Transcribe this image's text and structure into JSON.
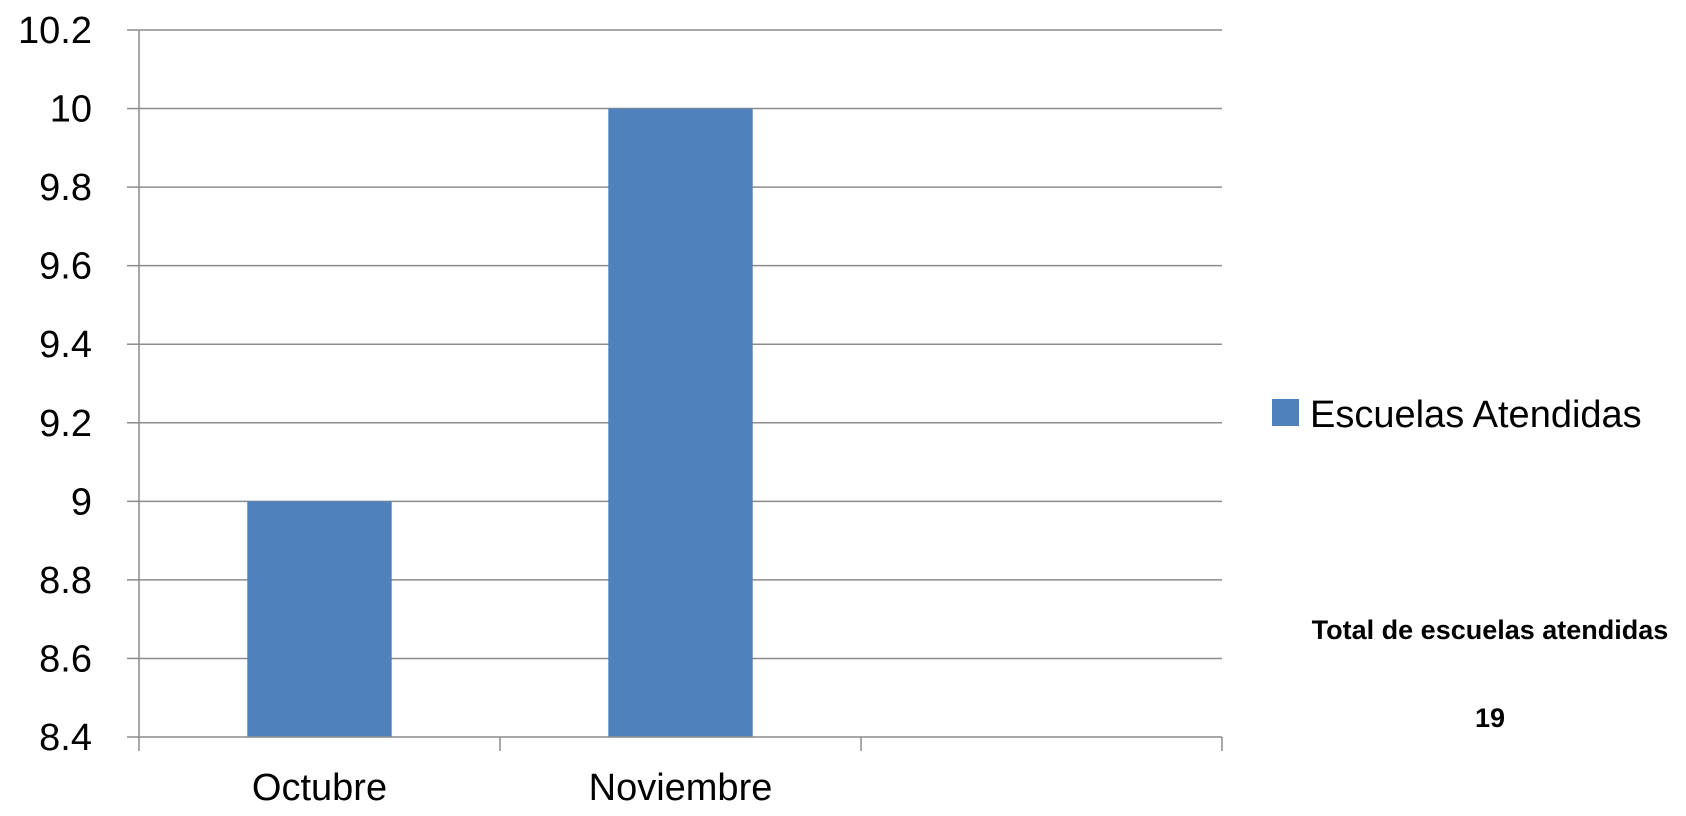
{
  "chart_data": {
    "type": "bar",
    "categories": [
      "Octubre",
      "Noviembre",
      ""
    ],
    "series": [
      {
        "name": "Escuelas Atendidas",
        "values": [
          9,
          10,
          null
        ]
      }
    ],
    "title": "",
    "xlabel": "",
    "ylabel": "",
    "ylim": [
      8.4,
      10.2
    ],
    "yticks": [
      "8.4",
      "8.6",
      "8.8",
      "9",
      "9.2",
      "9.4",
      "9.6",
      "9.8",
      "10",
      "10.2"
    ],
    "grid": true,
    "legend": "right",
    "colors": {
      "bar": "#4F81BD",
      "grid": "#8C8C8C",
      "axis": "#8C8C8C"
    }
  },
  "summary": {
    "label": "Total de escuelas atendidas",
    "value": "19"
  }
}
